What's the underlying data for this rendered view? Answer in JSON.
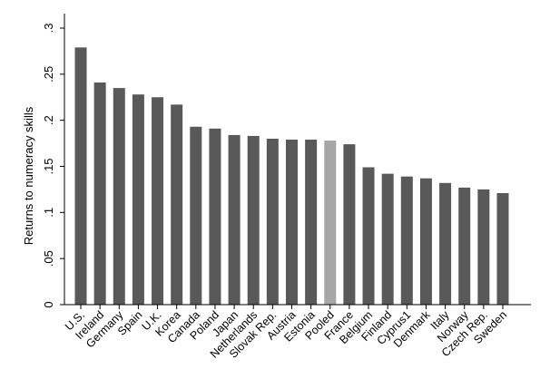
{
  "chart_data": {
    "type": "bar",
    "ylabel": "Returns to numeracy skills",
    "xlabel": "",
    "ylim": [
      0,
      0.3
    ],
    "yticks": [
      {
        "value": 0,
        "label": "0"
      },
      {
        "value": 0.05,
        "label": ".05"
      },
      {
        "value": 0.1,
        "label": ".1"
      },
      {
        "value": 0.15,
        "label": ".15"
      },
      {
        "value": 0.2,
        "label": ".2"
      },
      {
        "value": 0.25,
        "label": ".25"
      },
      {
        "value": 0.3,
        "label": ".3"
      }
    ],
    "grid": false,
    "bar_color": "#595959",
    "highlight_color": "#a6a6a6",
    "highlight_category": "Pooled",
    "categories": [
      "U.S.",
      "Ireland",
      "Germany",
      "Spain",
      "U.K.",
      "Korea",
      "Canada",
      "Poland",
      "Japan",
      "Netherlands",
      "Slovak Rep.",
      "Austria",
      "Estonia",
      "Pooled",
      "France",
      "Belgium",
      "Finland",
      "Cyprus1",
      "Denmark",
      "Italy",
      "Norway",
      "Czech Rep.",
      "Sweden"
    ],
    "values": [
      0.279,
      0.241,
      0.235,
      0.228,
      0.225,
      0.217,
      0.193,
      0.191,
      0.184,
      0.183,
      0.18,
      0.179,
      0.179,
      0.178,
      0.174,
      0.149,
      0.142,
      0.139,
      0.137,
      0.132,
      0.127,
      0.125,
      0.121
    ]
  }
}
